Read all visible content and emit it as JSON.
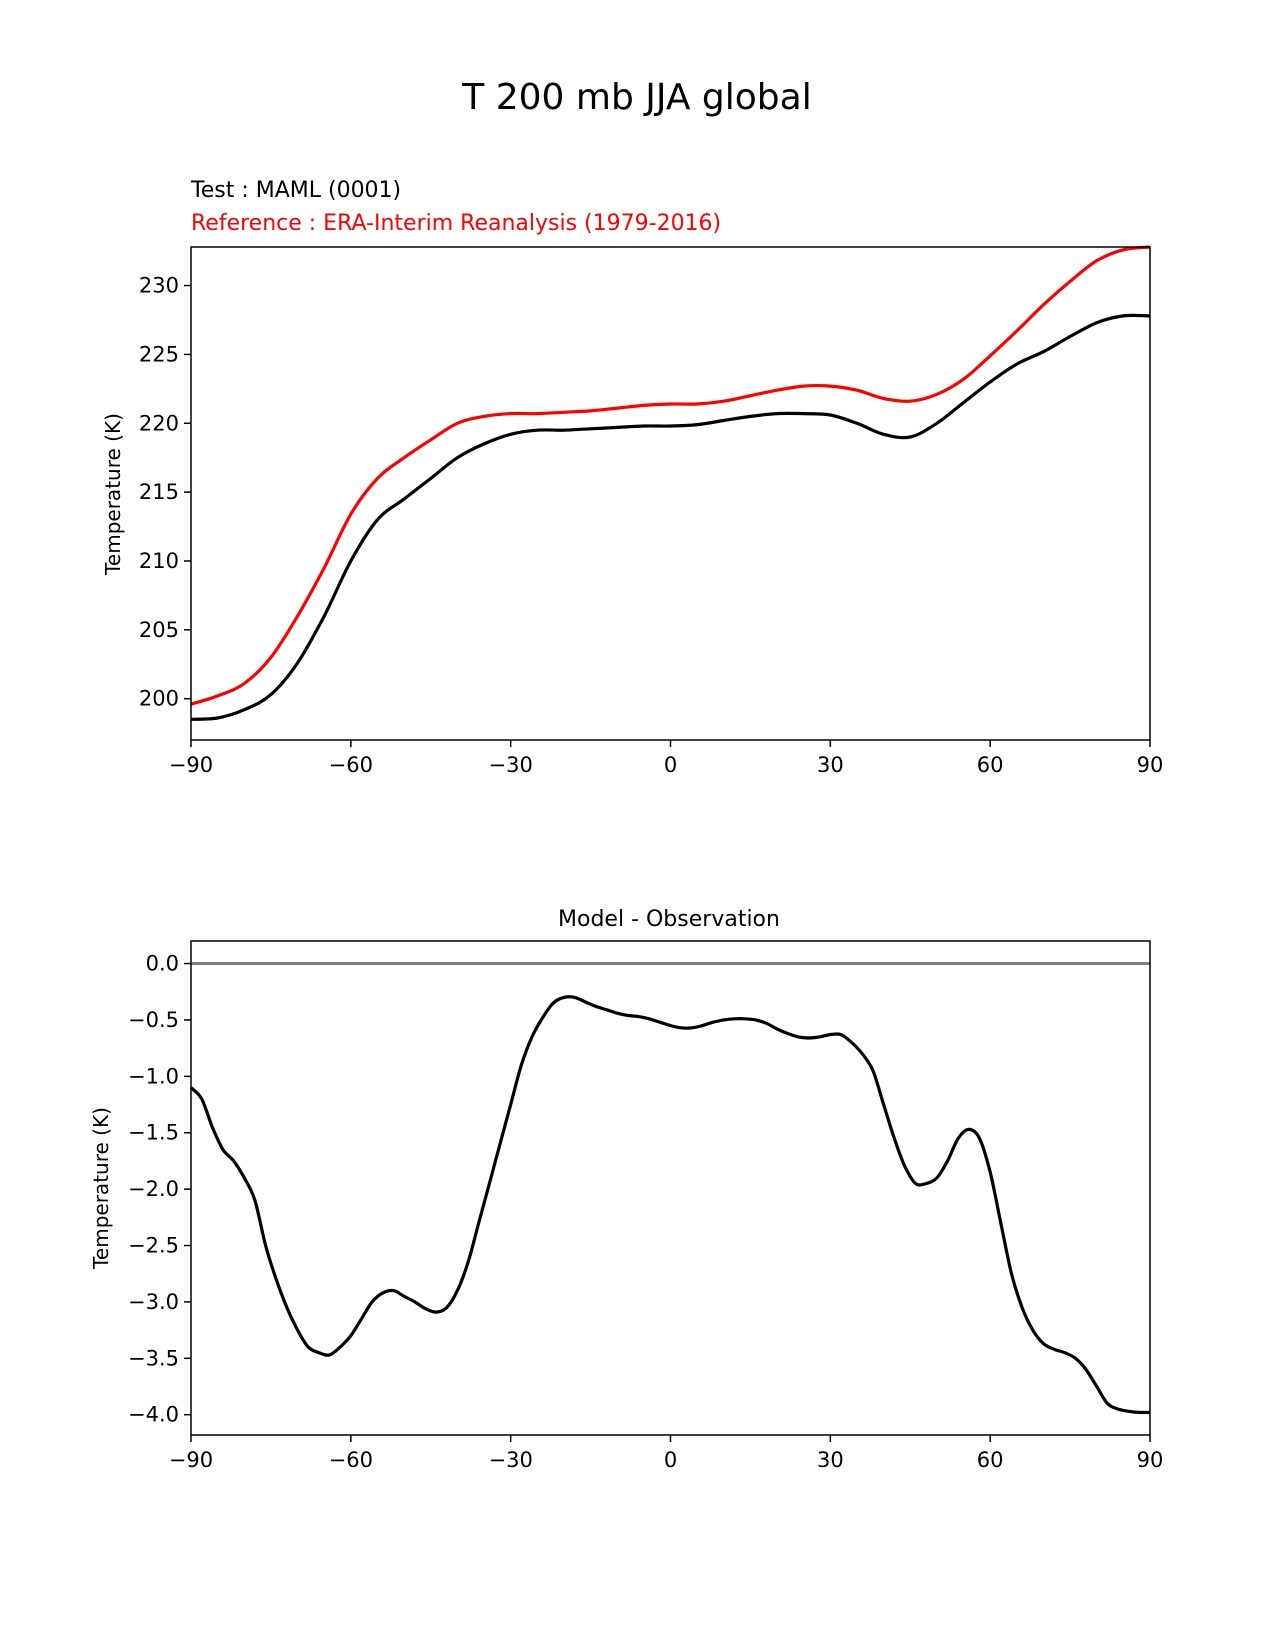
{
  "figure": {
    "title": "T 200 mb JJA global"
  },
  "chart_data": [
    {
      "type": "line",
      "title_test": "Test : MAML (0001)",
      "title_reference": "Reference : ERA-Interim Reanalysis (1979-2016)",
      "xlabel": "",
      "ylabel": "Temperature (K)",
      "xlim": [
        -90,
        90
      ],
      "ylim": [
        197,
        232.8
      ],
      "xticks": [
        -90,
        -60,
        -30,
        0,
        30,
        60,
        90
      ],
      "xtick_labels": [
        "−90",
        "−60",
        "−30",
        "0",
        "30",
        "60",
        "90"
      ],
      "yticks": [
        200,
        205,
        210,
        215,
        220,
        225,
        230
      ],
      "ytick_labels": [
        "200",
        "205",
        "210",
        "215",
        "220",
        "225",
        "230"
      ],
      "x": [
        -90,
        -85,
        -80,
        -75,
        -70,
        -65,
        -60,
        -55,
        -50,
        -45,
        -40,
        -35,
        -30,
        -25,
        -20,
        -15,
        -10,
        -5,
        0,
        5,
        10,
        15,
        20,
        25,
        30,
        35,
        40,
        45,
        50,
        55,
        60,
        65,
        70,
        75,
        80,
        85,
        90
      ],
      "series": [
        {
          "name": "Test : MAML (0001)",
          "color": "#000000",
          "values": [
            198.5,
            198.6,
            199.2,
            200.3,
            202.6,
            206.0,
            210.0,
            213.0,
            214.5,
            216.0,
            217.5,
            218.5,
            219.2,
            219.5,
            219.5,
            219.6,
            219.7,
            219.8,
            219.8,
            219.9,
            220.2,
            220.5,
            220.7,
            220.7,
            220.6,
            220.0,
            219.2,
            219.0,
            220.0,
            221.5,
            223.0,
            224.3,
            225.2,
            226.3,
            227.3,
            227.8,
            227.8
          ]
        },
        {
          "name": "Reference : ERA-Interim Reanalysis (1979-2016)",
          "color": "#ff0000",
          "values": [
            199.6,
            200.2,
            201.1,
            203.0,
            206.0,
            209.5,
            213.4,
            216.0,
            217.5,
            218.8,
            220.0,
            220.5,
            220.7,
            220.7,
            220.8,
            220.9,
            221.1,
            221.3,
            221.4,
            221.4,
            221.6,
            222.0,
            222.4,
            222.7,
            222.7,
            222.4,
            221.8,
            221.6,
            222.1,
            223.2,
            224.9,
            226.7,
            228.6,
            230.3,
            231.8,
            232.6,
            232.8
          ]
        }
      ]
    },
    {
      "type": "line",
      "title": "Model - Observation",
      "xlabel": "",
      "ylabel": "Temperature (K)",
      "xlim": [
        -90,
        90
      ],
      "ylim": [
        -4.18,
        0.2
      ],
      "xticks": [
        -90,
        -60,
        -30,
        0,
        30,
        60,
        90
      ],
      "xtick_labels": [
        "−90",
        "−60",
        "−30",
        "0",
        "30",
        "60",
        "90"
      ],
      "yticks": [
        0.0,
        -0.5,
        -1.0,
        -1.5,
        -2.0,
        -2.5,
        -3.0,
        -3.5,
        -4.0
      ],
      "ytick_labels": [
        "0.0",
        "−0.5",
        "−1.0",
        "−1.5",
        "−2.0",
        "−2.5",
        "−3.0",
        "−3.5",
        "−4.0"
      ],
      "reference_line": {
        "y": 0.0,
        "color": "#808080"
      },
      "x": [
        -90,
        -88,
        -86,
        -84,
        -82,
        -80,
        -78,
        -76,
        -74,
        -72,
        -70,
        -68,
        -66,
        -64,
        -62,
        -60,
        -58,
        -56,
        -54,
        -52,
        -50,
        -48,
        -46,
        -44,
        -42,
        -40,
        -38,
        -36,
        -34,
        -32,
        -30,
        -28,
        -26,
        -24,
        -22,
        -20,
        -18,
        -16,
        -14,
        -12,
        -10,
        -8,
        -6,
        -4,
        -2,
        0,
        2,
        4,
        6,
        8,
        10,
        12,
        14,
        16,
        18,
        20,
        22,
        24,
        26,
        28,
        30,
        32,
        34,
        36,
        38,
        40,
        42,
        44,
        46,
        48,
        50,
        52,
        54,
        56,
        58,
        60,
        62,
        64,
        66,
        68,
        70,
        72,
        74,
        76,
        78,
        80,
        82,
        84,
        86,
        88,
        90
      ],
      "series": [
        {
          "name": "Model - Observation",
          "color": "#000000",
          "values": [
            -1.1,
            -1.2,
            -1.45,
            -1.65,
            -1.75,
            -1.9,
            -2.1,
            -2.5,
            -2.8,
            -3.05,
            -3.25,
            -3.4,
            -3.45,
            -3.47,
            -3.4,
            -3.3,
            -3.15,
            -3.0,
            -2.92,
            -2.9,
            -2.95,
            -3.0,
            -3.06,
            -3.09,
            -3.05,
            -2.9,
            -2.65,
            -2.3,
            -1.95,
            -1.6,
            -1.25,
            -0.9,
            -0.65,
            -0.48,
            -0.35,
            -0.3,
            -0.3,
            -0.34,
            -0.38,
            -0.41,
            -0.44,
            -0.46,
            -0.47,
            -0.49,
            -0.52,
            -0.55,
            -0.57,
            -0.57,
            -0.55,
            -0.52,
            -0.5,
            -0.49,
            -0.49,
            -0.5,
            -0.53,
            -0.58,
            -0.62,
            -0.65,
            -0.66,
            -0.65,
            -0.63,
            -0.63,
            -0.7,
            -0.8,
            -0.95,
            -1.25,
            -1.55,
            -1.8,
            -1.95,
            -1.95,
            -1.9,
            -1.75,
            -1.55,
            -1.47,
            -1.55,
            -1.85,
            -2.3,
            -2.75,
            -3.05,
            -3.25,
            -3.37,
            -3.42,
            -3.45,
            -3.5,
            -3.6,
            -3.75,
            -3.9,
            -3.95,
            -3.97,
            -3.98,
            -3.98
          ]
        }
      ]
    }
  ]
}
